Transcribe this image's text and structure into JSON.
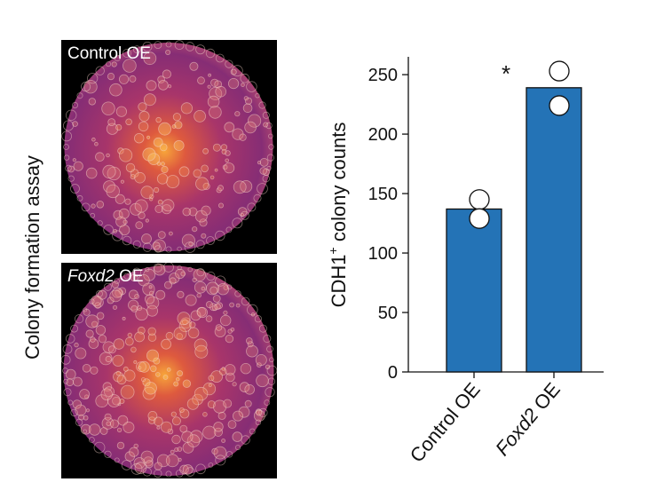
{
  "figure": {
    "side_label": "Colony formation assay",
    "panels": [
      {
        "label_italic": "",
        "label_text": "Control OE"
      },
      {
        "label_italic": "Foxd2",
        "label_text": " OE"
      }
    ]
  },
  "chart_data": {
    "type": "bar",
    "categories": [
      "Control OE",
      "Foxd2 OE"
    ],
    "category_italic": [
      "",
      "Foxd2"
    ],
    "category_rest": [
      "Control OE",
      " OE"
    ],
    "values": [
      137,
      239
    ],
    "points": [
      [
        145,
        129
      ],
      [
        253,
        224
      ]
    ],
    "yticks": [
      0,
      50,
      100,
      150,
      200,
      250
    ],
    "ylim": [
      0,
      265
    ],
    "ylabel_main": "CDH1",
    "ylabel_sup": "+",
    "ylabel_rest": " colony counts",
    "annotation": "*",
    "bar_color": "#2473b6",
    "grid": false
  }
}
